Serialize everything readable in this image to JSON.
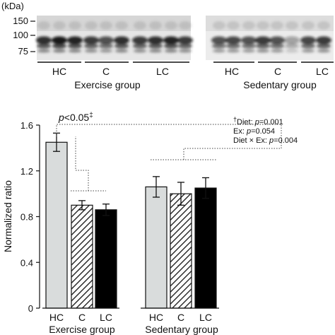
{
  "blot": {
    "unit_label": "(kDa)",
    "markers": [
      "150",
      "100",
      "75"
    ],
    "lanes": [
      {
        "label": "HC",
        "group": "Exercise group"
      },
      {
        "label": "C",
        "group": "Exercise group"
      },
      {
        "label": "LC",
        "group": "Exercise group"
      },
      {
        "label": "HC",
        "group": "Sedentary group"
      },
      {
        "label": "C",
        "group": "Sedentary group"
      },
      {
        "label": "LC",
        "group": "Sedentary group"
      }
    ],
    "groups": [
      "Exercise group",
      "Sedentary group"
    ]
  },
  "significance": {
    "p_prefix": "p",
    "p_rest": "<0.05",
    "p_mark": "‡"
  },
  "stats": {
    "line1_mark": "†",
    "line1_label": "Diet: ",
    "line1_p": "p",
    "line1_val": "=0.001",
    "line2_label": "Ex: ",
    "line2_p": "p",
    "line2_val": "=0.054",
    "line3_label": "Diet × Ex: ",
    "line3_p": "p",
    "line3_val": "=0.004"
  },
  "chart_data": {
    "type": "bar",
    "title": "",
    "xlabel": "",
    "ylabel": "Normalized ratio",
    "ylim": [
      0,
      1.6
    ],
    "yticks": [
      "0",
      "0.4",
      "0.8",
      "1.2",
      "1.6"
    ],
    "categories": [
      "HC",
      "C",
      "LC",
      "HC",
      "C",
      "LC"
    ],
    "groups": [
      {
        "name": "Exercise group",
        "categories": [
          "HC",
          "C",
          "LC"
        ]
      },
      {
        "name": "Sedentary group",
        "categories": [
          "HC",
          "C",
          "LC"
        ]
      }
    ],
    "values": [
      1.45,
      0.9,
      0.86,
      1.06,
      1.0,
      1.05
    ],
    "errors": [
      0.08,
      0.04,
      0.05,
      0.09,
      0.1,
      0.09
    ],
    "fills": [
      "light-gray",
      "hatched",
      "black",
      "light-gray",
      "hatched",
      "black"
    ],
    "colors": {
      "light_gray": "#d9dcdc",
      "black": "#000000",
      "hatch": "#111111"
    },
    "grid": false
  }
}
